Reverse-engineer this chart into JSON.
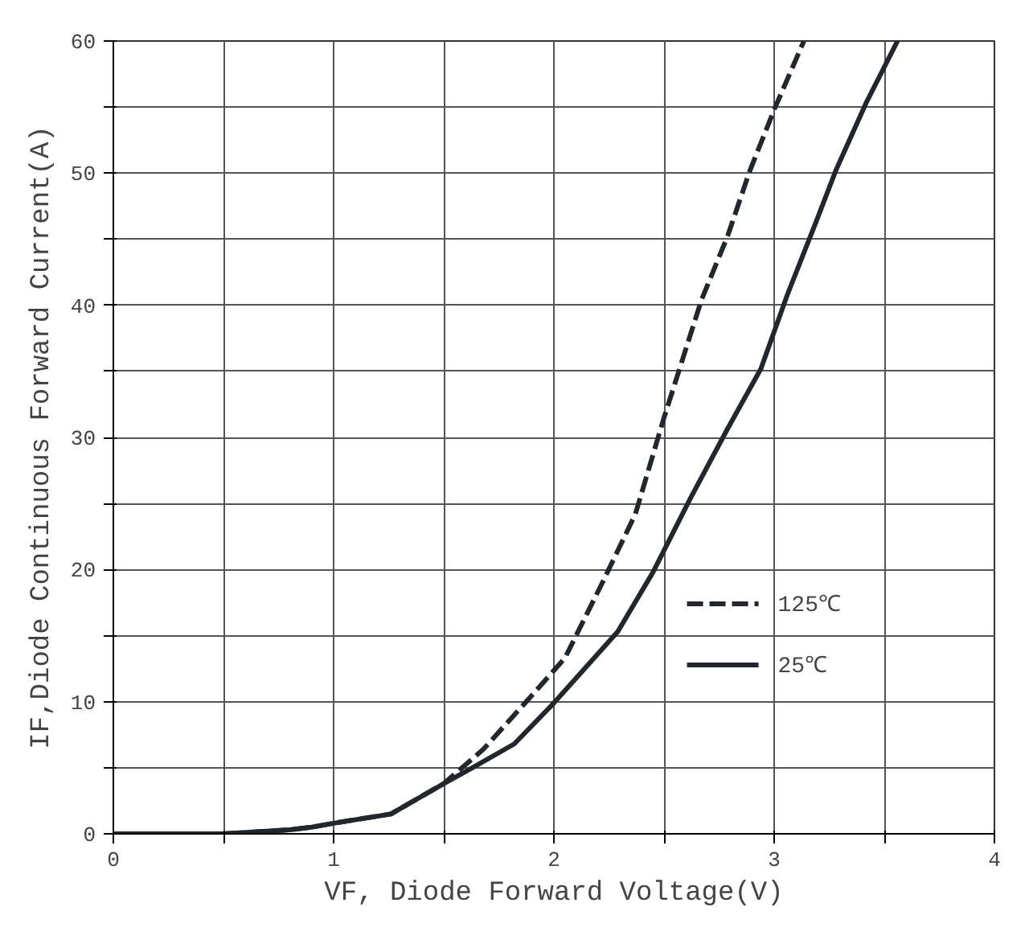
{
  "chart_data": {
    "type": "line",
    "xlabel": "VF, Diode Forward Voltage(V)",
    "ylabel": "IF,Diode Continuous Forward Current(A)",
    "xlim": [
      0,
      4
    ],
    "ylim": [
      0,
      60
    ],
    "xticks": [
      0,
      {
        "value": 0.5,
        "label": null
      },
      1,
      {
        "value": 1.5,
        "label": null
      },
      2,
      {
        "value": 2.5,
        "label": null
      },
      3,
      {
        "value": 3.5,
        "label": null
      },
      4
    ],
    "yticks": [
      0,
      {
        "value": 5,
        "label": null
      },
      10,
      {
        "value": 15,
        "label": null
      },
      20,
      {
        "value": 25,
        "label": null
      },
      30,
      {
        "value": 35,
        "label": null
      },
      40,
      {
        "value": 45,
        "label": null
      },
      50,
      {
        "value": 55,
        "label": null
      },
      60
    ],
    "grid": true,
    "legend": "bottom right",
    "marker": "none",
    "series": [
      {
        "name": "125℃",
        "color": "#22272e",
        "line_style": "dashed",
        "x": [
          0,
          0.5,
          0.8,
          0.9,
          1.0,
          1.26,
          1.5,
          1.68,
          1.88,
          2.05,
          2.22,
          2.37,
          2.5,
          2.67,
          2.79,
          2.89,
          3.0,
          3.135
        ],
        "values": [
          0,
          0,
          0.3,
          0.5,
          0.8,
          1.5,
          3.8,
          6.4,
          10.1,
          13.3,
          19.0,
          24.2,
          31.5,
          40.4,
          45.3,
          50.2,
          54.8,
          60
        ]
      },
      {
        "name": "25℃",
        "color": "#22272e",
        "line_style": "solid",
        "x": [
          0,
          0.5,
          0.8,
          0.9,
          1.0,
          1.26,
          1.5,
          1.63,
          1.82,
          2.0,
          2.29,
          2.45,
          2.62,
          2.79,
          2.94,
          3.06,
          3.19,
          3.28,
          3.42,
          3.56
        ],
        "values": [
          0,
          0,
          0.3,
          0.5,
          0.8,
          1.5,
          3.8,
          5.0,
          6.8,
          9.9,
          15.3,
          19.8,
          25.4,
          30.7,
          35.2,
          40.8,
          46.3,
          50.2,
          55.4,
          60
        ]
      }
    ]
  }
}
